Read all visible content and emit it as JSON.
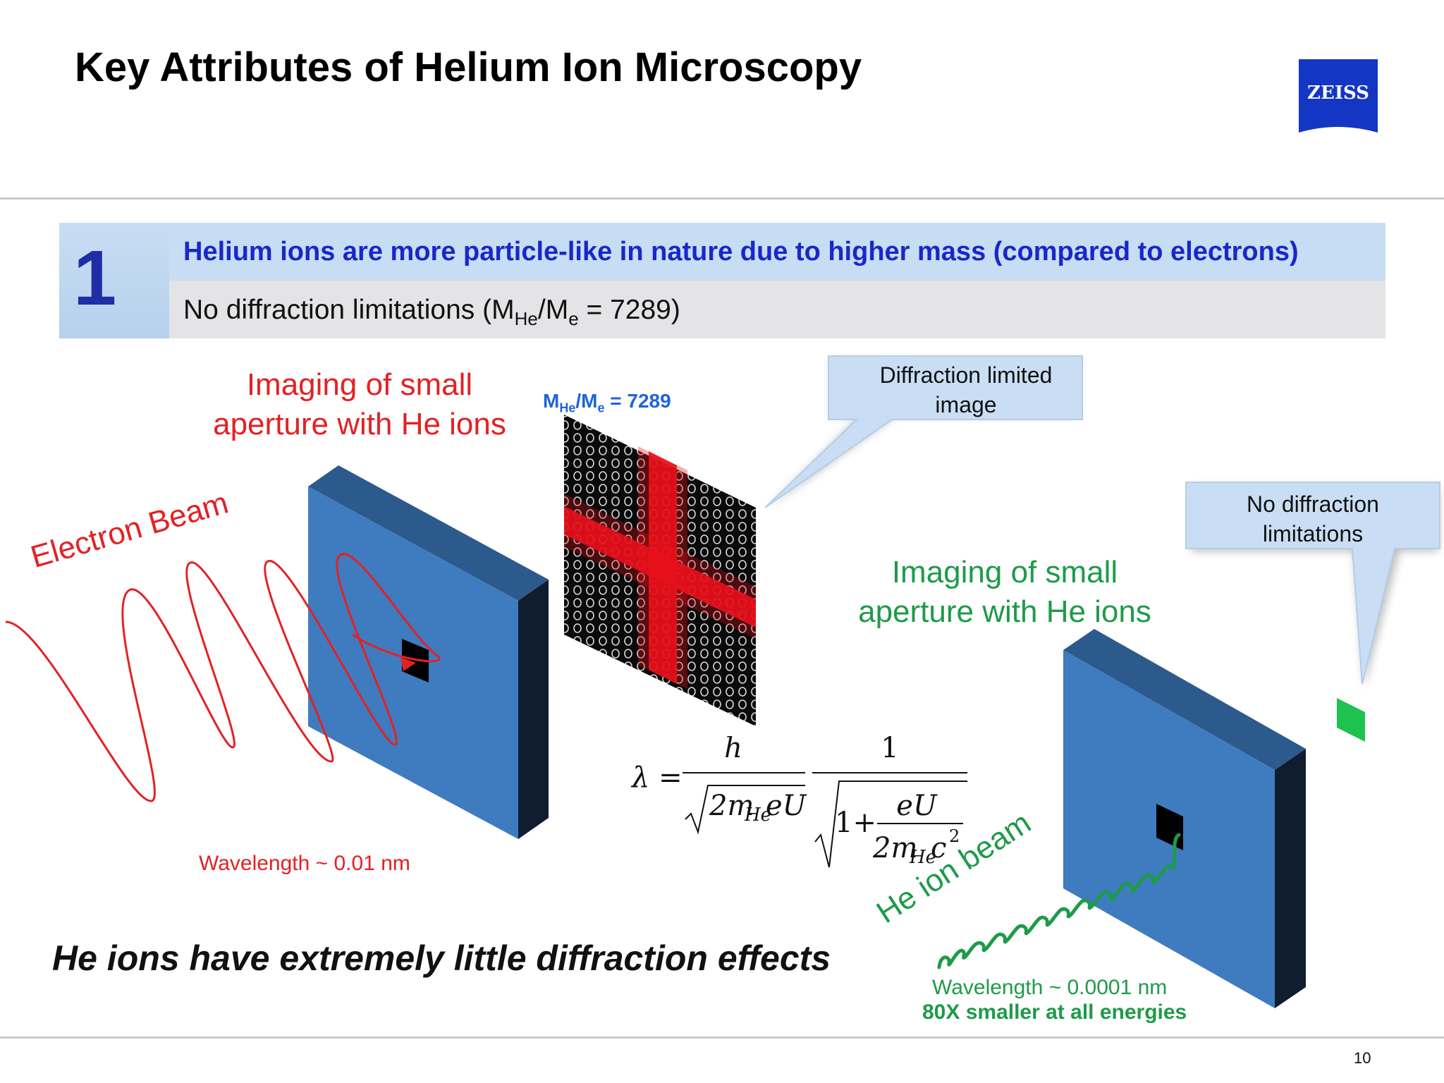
{
  "slide": {
    "title": "Key Attributes of Helium Ion Microscopy",
    "logo_text": "ZEISS",
    "page_number": "10"
  },
  "point": {
    "number": "1",
    "headline": "Helium ions are more particle-like in nature due to higher mass (compared to electrons)",
    "subline_prefix": "No diffraction limitations (M",
    "subline_sub1": "He",
    "subline_mid": "/M",
    "subline_sub2": "e",
    "subline_suffix": " = 7289)"
  },
  "left_diagram": {
    "title_line1": "Imaging of small",
    "title_line2": "aperture with He ions",
    "beam_label": "Electron Beam",
    "wavelength": "Wavelength ~ 0.01 nm",
    "mass_prefix": "M",
    "mass_sub1": "He",
    "mass_mid": "/M",
    "mass_sub2": "e",
    "mass_suffix": " = 7289",
    "callout_line1": "Diffraction limited",
    "callout_line2": "image"
  },
  "right_diagram": {
    "title_line1": "Imaging of small",
    "title_line2": "aperture with He ions",
    "beam_label": "He ion beam",
    "wavelength": "Wavelength ~ 0.0001 nm",
    "comparison": "80X smaller at all energies",
    "callout_line1": "No diffraction",
    "callout_line2": "limitations"
  },
  "formula": {
    "lhs": "λ =",
    "num1": "h",
    "den1_a": "2m",
    "den1_sub": "He",
    "den1_b": "eU",
    "num2": "1",
    "den2_a": "1+",
    "den2_num": "eU",
    "den2_den_a": "2m",
    "den2_den_sub": "He",
    "den2_den_b": "c",
    "den2_den_sup": "2"
  },
  "conclusion": "He ions have extremely little diffraction effects",
  "colors": {
    "title": "#000000",
    "headline_blue": "#1a27c9",
    "electron_red": "#e32124",
    "helium_green": "#1e9b49",
    "plate_blue": "#3f7bbf",
    "logo_blue": "#1436c4",
    "callout_fill": "#c9def4"
  }
}
